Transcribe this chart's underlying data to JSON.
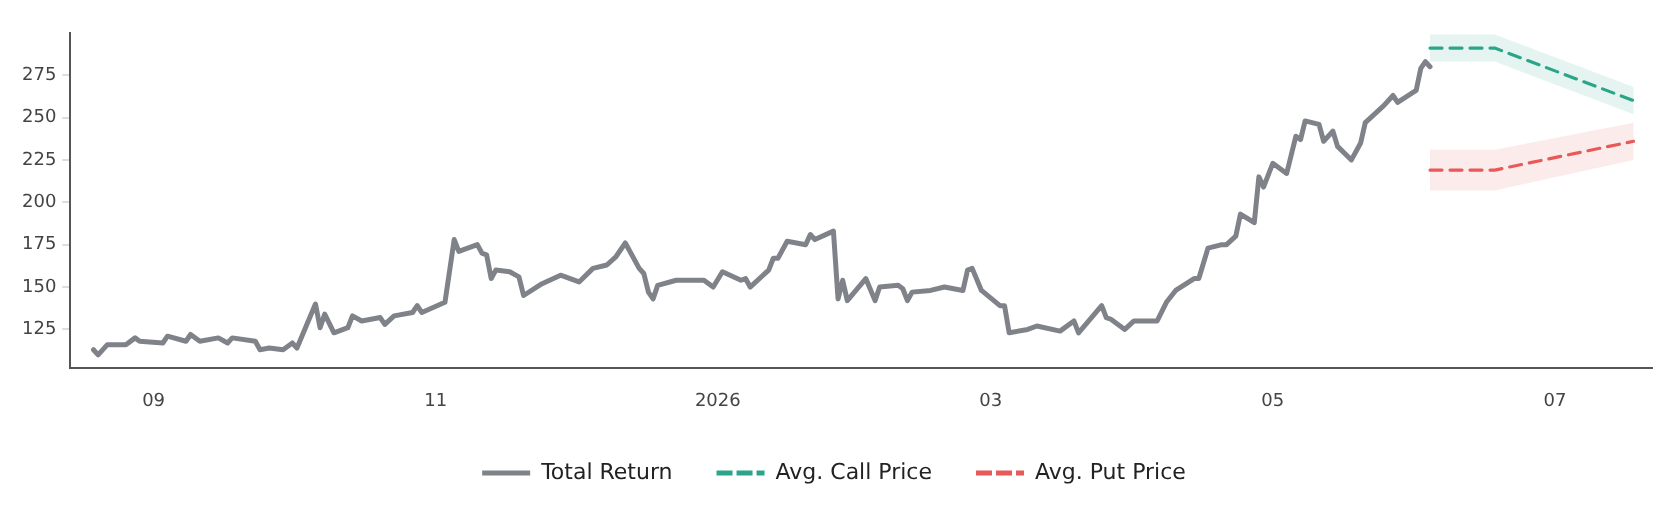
{
  "chart_data": {
    "type": "line",
    "xlim": [
      "2025-08-14",
      "2026-07-22"
    ],
    "xticks": [
      {
        "value": "2025-09-01",
        "label": "09"
      },
      {
        "value": "2025-11-01",
        "label": "11"
      },
      {
        "value": "2026-01-01",
        "label": "2026"
      },
      {
        "value": "2026-03-01",
        "label": "03"
      },
      {
        "value": "2026-05-01",
        "label": "05"
      },
      {
        "value": "2026-07-01",
        "label": "07"
      }
    ],
    "ylim": [
      102,
      300
    ],
    "yticks": [
      125,
      150,
      175,
      200,
      225,
      250,
      275
    ],
    "grid": false,
    "legend": "bottom",
    "series": [
      {
        "name": "Total Return",
        "color": "#7f8389",
        "line_style": "solid",
        "x": [
          "2025-08-19",
          "2025-08-20",
          "2025-08-22",
          "2025-08-26",
          "2025-08-28",
          "2025-08-29",
          "2025-09-03",
          "2025-09-04",
          "2025-09-08",
          "2025-09-09",
          "2025-09-11",
          "2025-09-15",
          "2025-09-17",
          "2025-09-18",
          "2025-09-23",
          "2025-09-24",
          "2025-09-26",
          "2025-09-29",
          "2025-10-01",
          "2025-10-02",
          "2025-10-06",
          "2025-10-07",
          "2025-10-08",
          "2025-10-10",
          "2025-10-13",
          "2025-10-14",
          "2025-10-16",
          "2025-10-20",
          "2025-10-21",
          "2025-10-23",
          "2025-10-27",
          "2025-10-28",
          "2025-10-29",
          "2025-11-03",
          "2025-11-05",
          "2025-11-06",
          "2025-11-10",
          "2025-11-11",
          "2025-11-12",
          "2025-11-13",
          "2025-11-14",
          "2025-11-17",
          "2025-11-19",
          "2025-11-20",
          "2025-11-24",
          "2025-11-28",
          "2025-12-02",
          "2025-12-05",
          "2025-12-08",
          "2025-12-10",
          "2025-12-12",
          "2025-12-15",
          "2025-12-16",
          "2025-12-17",
          "2025-12-18",
          "2025-12-19",
          "2025-12-23",
          "2025-12-29",
          "2025-12-31",
          "2026-01-02",
          "2026-01-06",
          "2026-01-07",
          "2026-01-08",
          "2026-01-12",
          "2026-01-13",
          "2026-01-14",
          "2026-01-16",
          "2026-01-20",
          "2026-01-21",
          "2026-01-22",
          "2026-01-26",
          "2026-01-27",
          "2026-01-28",
          "2026-01-29",
          "2026-02-02",
          "2026-02-04",
          "2026-02-05",
          "2026-02-09",
          "2026-02-10",
          "2026-02-11",
          "2026-02-12",
          "2026-02-16",
          "2026-02-19",
          "2026-02-23",
          "2026-02-24",
          "2026-02-25",
          "2026-02-27",
          "2026-03-03",
          "2026-03-04",
          "2026-03-05",
          "2026-03-09",
          "2026-03-11",
          "2026-03-16",
          "2026-03-19",
          "2026-03-20",
          "2026-03-25",
          "2026-03-26",
          "2026-03-27",
          "2026-03-30",
          "2026-04-01",
          "2026-04-06",
          "2026-04-08",
          "2026-04-10",
          "2026-04-14",
          "2026-04-15",
          "2026-04-17",
          "2026-04-20",
          "2026-04-21",
          "2026-04-23",
          "2026-04-24",
          "2026-04-27",
          "2026-04-28",
          "2026-04-29",
          "2026-05-01",
          "2026-05-04",
          "2026-05-06",
          "2026-05-07",
          "2026-05-08",
          "2026-05-11",
          "2026-05-12",
          "2026-05-14",
          "2026-05-15",
          "2026-05-18",
          "2026-05-20",
          "2026-05-21",
          "2026-05-25",
          "2026-05-27",
          "2026-05-28",
          "2026-06-01",
          "2026-06-02",
          "2026-06-03",
          "2026-06-04"
        ],
        "values": [
          113,
          110,
          116,
          116,
          120,
          118,
          117,
          121,
          118,
          122,
          118,
          120,
          117,
          120,
          118,
          113,
          114,
          113,
          117,
          114,
          140,
          126,
          134,
          123,
          126,
          133,
          130,
          132,
          128,
          133,
          135,
          139,
          135,
          141,
          178,
          171,
          175,
          170,
          169,
          155,
          160,
          159,
          156,
          145,
          152,
          157,
          153,
          161,
          163,
          168,
          176,
          161,
          158,
          147,
          143,
          151,
          154,
          154,
          150,
          159,
          154,
          155,
          150,
          160,
          167,
          167,
          177,
          175,
          181,
          178,
          183,
          143,
          154,
          142,
          155,
          142,
          150,
          151,
          149,
          142,
          147,
          148,
          150,
          148,
          160,
          161,
          148,
          139,
          139,
          123,
          125,
          127,
          124,
          130,
          123,
          139,
          132,
          131,
          125,
          130,
          130,
          141,
          148,
          155,
          155,
          173,
          175,
          175,
          180,
          193,
          188,
          215,
          209,
          223,
          217,
          239,
          237,
          248,
          246,
          236,
          242,
          233,
          225,
          235,
          247,
          257,
          263,
          259,
          266,
          279,
          283,
          280
        ]
      },
      {
        "name": "Avg. Call Price",
        "color": "#2aa58a",
        "line_style": "dashed",
        "x": [
          "2026-06-04",
          "2026-06-18",
          "2026-07-18"
        ],
        "values": [
          291,
          291,
          260
        ],
        "lower": [
          283,
          283,
          252
        ],
        "upper": [
          299,
          299,
          268
        ]
      },
      {
        "name": "Avg. Put Price",
        "color": "#e8595a",
        "line_style": "dashed",
        "x": [
          "2026-06-04",
          "2026-06-18",
          "2026-07-18"
        ],
        "values": [
          219,
          219,
          236
        ],
        "lower": [
          207,
          207,
          225
        ],
        "upper": [
          231,
          231,
          247
        ]
      }
    ]
  }
}
